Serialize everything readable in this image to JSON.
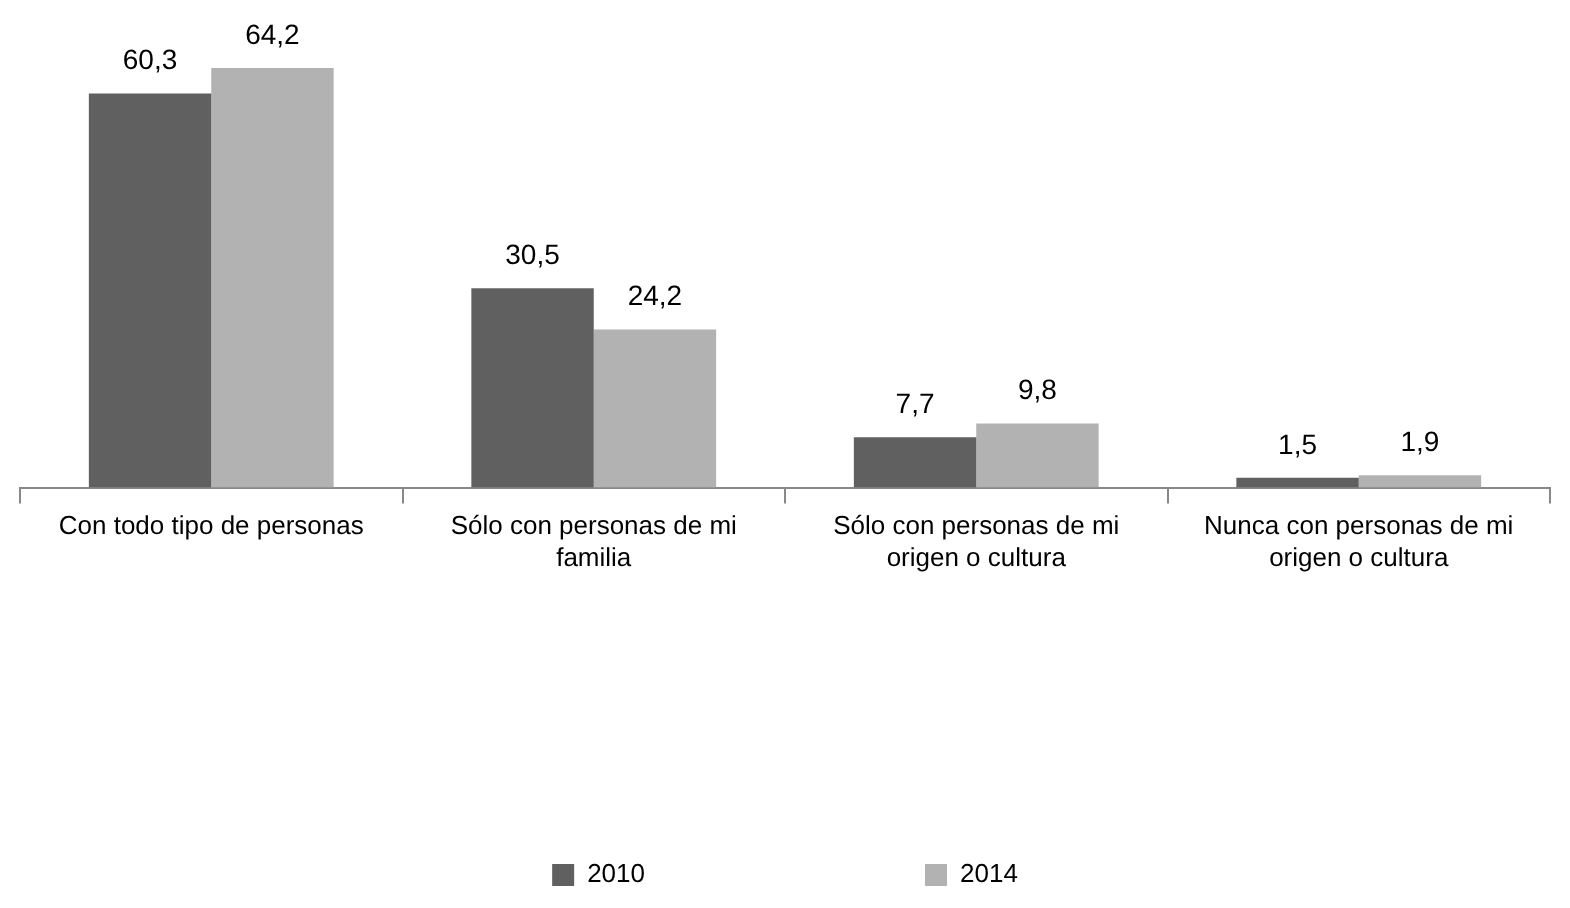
{
  "chart_data": {
    "type": "bar",
    "categories": [
      "Con todo tipo de personas",
      "Sólo con personas de mi familia",
      "Sólo con personas de mi origen o cultura",
      "Nunca con personas de mi origen o cultura"
    ],
    "series": [
      {
        "name": "2010",
        "color": "#606060",
        "values": [
          60.3,
          30.5,
          7.7,
          1.5
        ],
        "value_labels": [
          "60,3",
          "30,5",
          "7,7",
          "1,5"
        ]
      },
      {
        "name": "2014",
        "color": "#b2b2b2",
        "values": [
          64.2,
          24.2,
          9.8,
          1.9
        ],
        "value_labels": [
          "64,2",
          "24,2",
          "9,8",
          "1,9"
        ]
      }
    ],
    "legend": "bottom",
    "grid": false,
    "tick_labels": "x"
  }
}
